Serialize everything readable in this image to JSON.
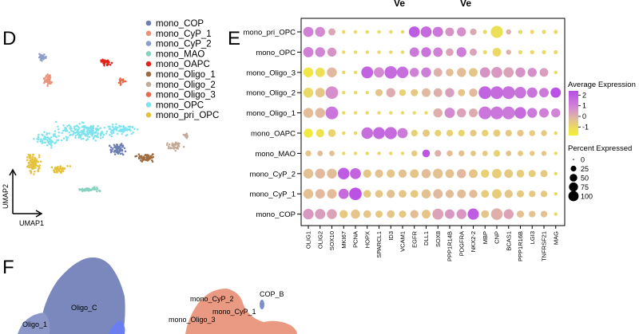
{
  "panels": {
    "d": "D",
    "e": "E",
    "f": "F"
  },
  "top_cut_labels": [
    "Ve",
    "Ve"
  ],
  "umap": {
    "x_label": "UMAP1",
    "y_label": "UMAP2",
    "clusters": [
      {
        "name": "mono_COP",
        "color": "#6d7eb4"
      },
      {
        "name": "mono_CyP_1",
        "color": "#e8937a"
      },
      {
        "name": "mono_CyP_2",
        "color": "#8c9fca"
      },
      {
        "name": "mono_MAO",
        "color": "#86d2c0"
      },
      {
        "name": "mono_OAPC",
        "color": "#e0251b"
      },
      {
        "name": "mono_Oligo_1",
        "color": "#9e6a3f"
      },
      {
        "name": "mono_Oligo_2",
        "color": "#c4ab98"
      },
      {
        "name": "mono_Oligo_3",
        "color": "#e86a4a"
      },
      {
        "name": "mono_OPC",
        "color": "#7ee3ee"
      },
      {
        "name": "mono_pri_OPC",
        "color": "#e6c13a"
      }
    ]
  },
  "chart_data": {
    "type": "dotplot",
    "rows": [
      "mono_pri_OPC",
      "mono_OPC",
      "mono_Oligo_3",
      "mono_Oligo_2",
      "mono_Oligo_1",
      "mono_OAPC",
      "mono_MAO",
      "mono_CyP_2",
      "mono_CyP_1",
      "mono_COP"
    ],
    "genes": [
      "OLIG1",
      "OLIG2",
      "SOX10",
      "MKI67",
      "PCNA",
      "HOPX",
      "SPARCL1",
      "ID3",
      "VCAM1",
      "EGFR",
      "DLL1",
      "SOX8",
      "PPP1R14B",
      "PDGFRA",
      "NKX2-2",
      "MBP",
      "CNP",
      "BCAS1",
      "PPP1R16B",
      "LGI3",
      "TNFRSF21",
      "MAG"
    ],
    "avg_expression": [
      [
        1.0,
        0.8,
        0.2,
        -1,
        -1,
        -1,
        -1,
        -1,
        -1,
        2.0,
        1.6,
        1.3,
        0.6,
        0.7,
        0.2,
        -1,
        -1.2,
        0,
        -1,
        -1,
        -1,
        -1
      ],
      [
        1.0,
        0.9,
        0.6,
        -1,
        -1,
        -1,
        -1,
        -1,
        -1,
        1.2,
        1.4,
        1.0,
        0.3,
        1.1,
        0.3,
        -1,
        -1,
        0,
        -1,
        -1,
        -1,
        -1
      ],
      [
        -1.5,
        -1.2,
        -0.2,
        -1,
        -1,
        1.8,
        0.8,
        1.6,
        1.5,
        1.0,
        1.1,
        0.0,
        -0.3,
        -0.3,
        -0.5,
        0.6,
        0.5,
        0.3,
        0.6,
        0.7,
        0.4,
        -1
      ],
      [
        -1.0,
        -0.5,
        0.7,
        -1,
        -1,
        -1,
        -0.5,
        0.1,
        -0.8,
        -0.6,
        -0.2,
        0.0,
        0.4,
        -0.5,
        -0.2,
        1.8,
        1.6,
        1.5,
        1.4,
        1.4,
        1.2,
        2.3
      ],
      [
        -0.3,
        -0.2,
        1.3,
        -1,
        -1,
        -1,
        -1,
        -1,
        -1,
        -1,
        -1,
        0.0,
        0.8,
        0.3,
        0.1,
        1.3,
        1.3,
        1.2,
        1.6,
        1.2,
        1.0,
        0.9
      ],
      [
        -1.6,
        -1.3,
        -0.9,
        -1,
        -1,
        1.5,
        1.7,
        1.6,
        1.2,
        -0.8,
        -0.6,
        -0.8,
        -0.8,
        -0.9,
        -0.6,
        -0.8,
        -0.7,
        -0.6,
        -0.5,
        -0.7,
        -0.6,
        -1
      ],
      [
        -0.5,
        -0.3,
        -0.4,
        -1,
        -1,
        -1,
        -1,
        -1,
        -1,
        -0.7,
        2.2,
        0.0,
        -0.3,
        -0.4,
        -0.5,
        -0.6,
        -0.8,
        -0.4,
        -0.6,
        -0.6,
        -0.5,
        -1
      ],
      [
        -0.4,
        -0.2,
        -0.3,
        2.0,
        1.8,
        -0.5,
        -0.4,
        -0.5,
        -0.4,
        -0.5,
        -0.3,
        -0.4,
        -0.4,
        -0.2,
        -0.5,
        -0.8,
        -0.7,
        -0.6,
        -0.7,
        -0.7,
        -0.6,
        -1
      ],
      [
        -0.4,
        -0.2,
        -0.3,
        1.6,
        2.3,
        -0.6,
        -0.5,
        -0.4,
        -0.5,
        -0.6,
        -0.4,
        -0.2,
        -0.3,
        -0.3,
        -0.3,
        -0.7,
        -0.7,
        -0.5,
        -0.6,
        -0.6,
        -0.6,
        -1
      ],
      [
        0.5,
        0.4,
        0.3,
        -0.6,
        -0.5,
        -0.5,
        -0.6,
        -0.5,
        -0.6,
        -0.3,
        -0.5,
        0.3,
        0.5,
        0.5,
        2.0,
        -0.5,
        0.0,
        0.3,
        -0.4,
        -0.4,
        -0.4,
        -1
      ]
    ],
    "pct_expressed": [
      [
        60,
        55,
        25,
        3,
        3,
        3,
        3,
        3,
        3,
        70,
        70,
        60,
        40,
        45,
        20,
        5,
        90,
        10,
        5,
        5,
        5,
        5
      ],
      [
        60,
        55,
        45,
        3,
        3,
        3,
        3,
        3,
        3,
        50,
        55,
        50,
        30,
        55,
        25,
        5,
        40,
        10,
        5,
        5,
        5,
        5
      ],
      [
        55,
        50,
        55,
        3,
        3,
        85,
        60,
        95,
        80,
        45,
        55,
        40,
        30,
        45,
        40,
        60,
        70,
        60,
        55,
        45,
        40,
        3
      ],
      [
        55,
        50,
        95,
        3,
        3,
        3,
        25,
        45,
        20,
        25,
        40,
        40,
        45,
        25,
        35,
        100,
        100,
        100,
        80,
        60,
        50,
        60
      ],
      [
        55,
        55,
        100,
        3,
        3,
        3,
        3,
        3,
        3,
        3,
        3,
        45,
        60,
        45,
        40,
        100,
        100,
        100,
        80,
        55,
        50,
        45
      ],
      [
        45,
        35,
        30,
        3,
        3,
        80,
        85,
        90,
        60,
        20,
        25,
        20,
        20,
        20,
        20,
        20,
        25,
        20,
        20,
        15,
        15,
        3
      ],
      [
        15,
        12,
        12,
        3,
        3,
        3,
        3,
        3,
        3,
        15,
        30,
        20,
        15,
        15,
        12,
        12,
        20,
        12,
        12,
        10,
        10,
        3
      ],
      [
        55,
        55,
        55,
        80,
        70,
        35,
        35,
        35,
        35,
        40,
        45,
        55,
        40,
        45,
        40,
        35,
        50,
        40,
        30,
        25,
        25,
        3
      ],
      [
        55,
        50,
        50,
        60,
        95,
        30,
        30,
        35,
        30,
        30,
        45,
        50,
        35,
        40,
        35,
        30,
        50,
        35,
        25,
        20,
        20,
        3
      ],
      [
        65,
        60,
        55,
        35,
        45,
        30,
        25,
        30,
        25,
        35,
        40,
        70,
        50,
        55,
        75,
        30,
        80,
        55,
        25,
        20,
        20,
        3
      ]
    ],
    "legend": {
      "color_title": "Average Expression",
      "color_ticks": [
        "2",
        "1",
        "0",
        "-1"
      ],
      "color_range": [
        -1.8,
        2.4
      ],
      "size_title": "Percent Expressed",
      "size_ticks": [
        "0",
        "25",
        "50",
        "75",
        "100"
      ]
    }
  },
  "panel_f": {
    "labels": [
      "Oligo_C",
      "Oligo_1",
      "COP_B",
      "mono_CyP_2",
      "mono_CyP_1",
      "mono_Oligo_3"
    ]
  }
}
